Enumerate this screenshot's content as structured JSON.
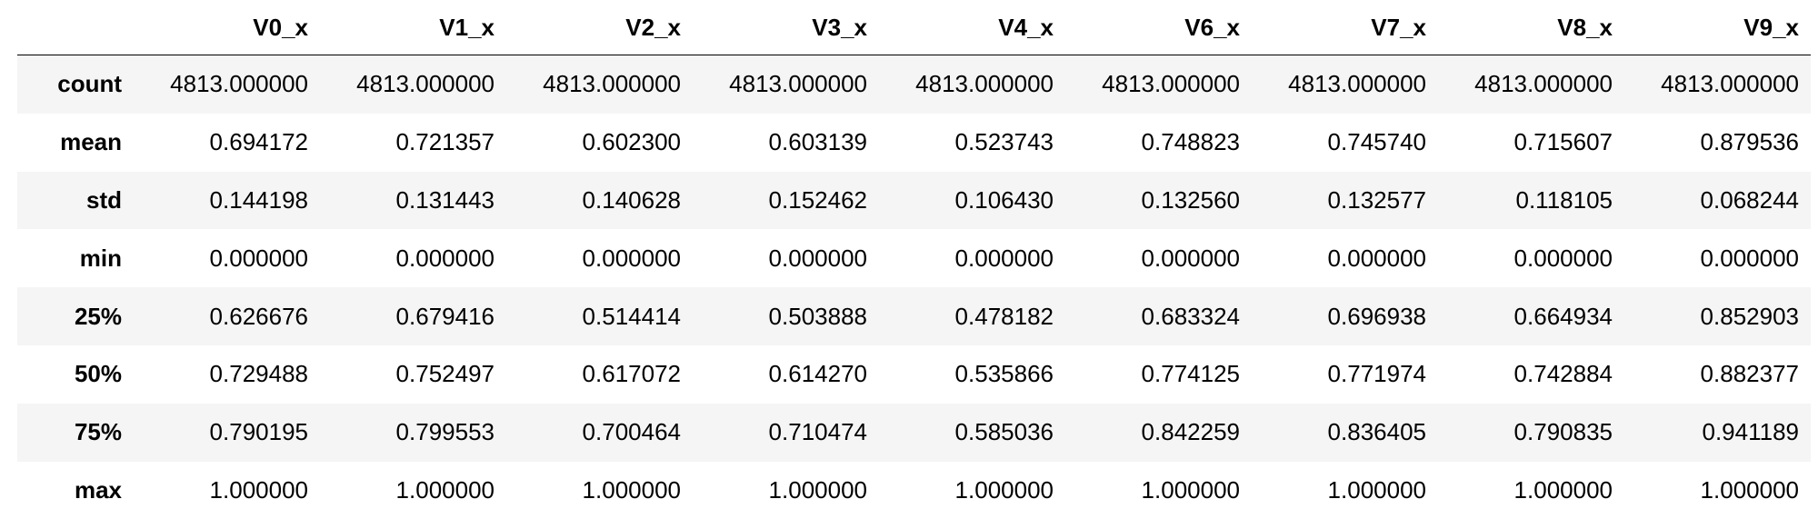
{
  "table": {
    "columns": [
      "V0_x",
      "V1_x",
      "V2_x",
      "V3_x",
      "V4_x",
      "V6_x",
      "V7_x",
      "V8_x",
      "V9_x"
    ],
    "rows": [
      {
        "label": "count",
        "cells": [
          "4813.000000",
          "4813.000000",
          "4813.000000",
          "4813.000000",
          "4813.000000",
          "4813.000000",
          "4813.000000",
          "4813.000000",
          "4813.000000"
        ]
      },
      {
        "label": "mean",
        "cells": [
          "0.694172",
          "0.721357",
          "0.602300",
          "0.603139",
          "0.523743",
          "0.748823",
          "0.745740",
          "0.715607",
          "0.879536"
        ]
      },
      {
        "label": "std",
        "cells": [
          "0.144198",
          "0.131443",
          "0.140628",
          "0.152462",
          "0.106430",
          "0.132560",
          "0.132577",
          "0.118105",
          "0.068244"
        ]
      },
      {
        "label": "min",
        "cells": [
          "0.000000",
          "0.000000",
          "0.000000",
          "0.000000",
          "0.000000",
          "0.000000",
          "0.000000",
          "0.000000",
          "0.000000"
        ]
      },
      {
        "label": "25%",
        "cells": [
          "0.626676",
          "0.679416",
          "0.514414",
          "0.503888",
          "0.478182",
          "0.683324",
          "0.696938",
          "0.664934",
          "0.852903"
        ]
      },
      {
        "label": "50%",
        "cells": [
          "0.729488",
          "0.752497",
          "0.617072",
          "0.614270",
          "0.535866",
          "0.774125",
          "0.771974",
          "0.742884",
          "0.882377"
        ]
      },
      {
        "label": "75%",
        "cells": [
          "0.790195",
          "0.799553",
          "0.700464",
          "0.710474",
          "0.585036",
          "0.842259",
          "0.836405",
          "0.790835",
          "0.941189"
        ]
      },
      {
        "label": "max",
        "cells": [
          "1.000000",
          "1.000000",
          "1.000000",
          "1.000000",
          "1.000000",
          "1.000000",
          "1.000000",
          "1.000000",
          "1.000000"
        ]
      }
    ]
  }
}
